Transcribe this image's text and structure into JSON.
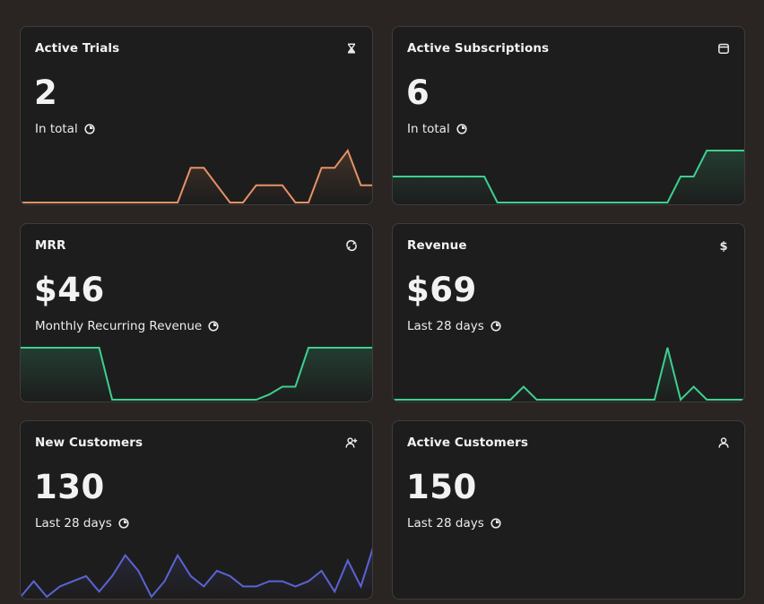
{
  "cards": [
    {
      "title": "Active Trials",
      "value": "2",
      "subtitle": "In total",
      "icon": "hourglass-icon",
      "color": "#e89165",
      "series": [
        0,
        0,
        0,
        0,
        0,
        0,
        0,
        0,
        0,
        0,
        0,
        0,
        0,
        2,
        2,
        1,
        0,
        0,
        1,
        1,
        1,
        0,
        0,
        2,
        2,
        3,
        1,
        1
      ]
    },
    {
      "title": "Active Subscriptions",
      "value": "6",
      "subtitle": "In total",
      "icon": "calendar-icon",
      "color": "#3ecf8e",
      "series": [
        1,
        1,
        1,
        1,
        1,
        1,
        1,
        1,
        0,
        0,
        0,
        0,
        0,
        0,
        0,
        0,
        0,
        0,
        0,
        0,
        0,
        0,
        1,
        1,
        2,
        2,
        2,
        2
      ]
    },
    {
      "title": "MRR",
      "value": "$46",
      "subtitle": "Monthly Recurring Revenue",
      "icon": "repeat-icon",
      "color": "#3ecf8e",
      "series": [
        1,
        1,
        1,
        1,
        1,
        1,
        1,
        0,
        0,
        0,
        0,
        0,
        0,
        0,
        0,
        0,
        0,
        0,
        0,
        0.1,
        0.25,
        0.25,
        1,
        1,
        1,
        1,
        1,
        1
      ]
    },
    {
      "title": "Revenue",
      "value": "$69",
      "subtitle": "Last 28 days",
      "icon": "dollar-icon",
      "color": "#3ecf8e",
      "series": [
        0,
        0,
        0,
        0,
        0,
        0,
        0,
        0,
        0,
        0,
        1,
        0,
        0,
        0,
        0,
        0,
        0,
        0,
        0,
        0,
        0,
        4,
        0,
        1,
        0,
        0,
        0,
        0
      ]
    },
    {
      "title": "New Customers",
      "value": "130",
      "subtitle": "Last 28 days",
      "icon": "user-plus-icon",
      "color": "#5b63d3",
      "series": [
        0,
        3,
        0,
        2,
        3,
        4,
        1,
        4,
        8,
        5,
        0,
        3,
        8,
        4,
        2,
        5,
        4,
        2,
        2,
        3,
        3,
        2,
        3,
        5,
        1,
        7,
        2,
        10
      ]
    },
    {
      "title": "Active Customers",
      "value": "150",
      "subtitle": "Last 28 days",
      "icon": "user-icon",
      "color": "#3ecf8e",
      "series": []
    }
  ]
}
